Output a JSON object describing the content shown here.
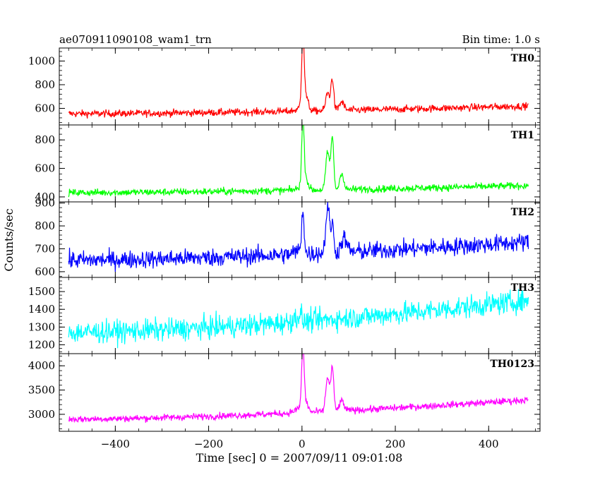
{
  "header": {
    "left_title": "ae070911090108_wam1_trn",
    "right_title": "Bin time: 1.0 s"
  },
  "chart_data": {
    "type": "line",
    "xlabel": "Time [sec] 0 = 2007/09/11 09:01:08",
    "ylabel": "Counts/sec",
    "xlim": [
      -520,
      510
    ],
    "x_range": [
      -500,
      485
    ],
    "x_ticks": [
      -400,
      -200,
      0,
      200,
      400
    ],
    "x_tick_labels": [
      "−400",
      "−200",
      "0",
      "200",
      "400"
    ],
    "grid": false,
    "legend": "none",
    "series": [
      {
        "name": "TH0",
        "color": "#ff0000",
        "ylim": [
          460,
          1110
        ],
        "y_ticks": [
          600,
          800,
          1000
        ],
        "base_start": 555,
        "base_end": 620,
        "noise": 22,
        "peaks": [
          {
            "t": 2,
            "h": 560,
            "w": 2.5
          },
          {
            "t": 6,
            "h": 150,
            "w": 6
          },
          {
            "t": 55,
            "h": 150,
            "w": 4
          },
          {
            "t": 65,
            "h": 270,
            "w": 3
          },
          {
            "t": 85,
            "h": 70,
            "w": 5
          }
        ]
      },
      {
        "name": "TH1",
        "color": "#00ff00",
        "ylim": [
          365,
          905
        ],
        "y_ticks": [
          400,
          600,
          800
        ],
        "base_start": 430,
        "base_end": 480,
        "noise": 18,
        "peaks": [
          {
            "t": 2,
            "h": 430,
            "w": 2.5
          },
          {
            "t": 6,
            "h": 100,
            "w": 6
          },
          {
            "t": 55,
            "h": 260,
            "w": 4
          },
          {
            "t": 65,
            "h": 360,
            "w": 3
          },
          {
            "t": 85,
            "h": 120,
            "w": 4
          }
        ]
      },
      {
        "name": "TH2",
        "color": "#0000ff",
        "ylim": [
          575,
          905
        ],
        "y_ticks": [
          600,
          700,
          800,
          900
        ],
        "base_start": 650,
        "base_end": 730,
        "noise": 28,
        "peaks": [
          {
            "t": 2,
            "h": 200,
            "w": 2.5
          },
          {
            "t": 55,
            "h": 200,
            "w": 4
          },
          {
            "t": 65,
            "h": 120,
            "w": 3
          },
          {
            "t": 90,
            "h": 60,
            "w": 6
          }
        ]
      },
      {
        "name": "TH3",
        "color": "#00ffff",
        "ylim": [
          1150,
          1580
        ],
        "y_ticks": [
          1200,
          1300,
          1400,
          1500
        ],
        "base_start": 1270,
        "base_end": 1450,
        "noise": 45,
        "peaks": []
      },
      {
        "name": "TH0123",
        "color": "#ff00ff",
        "ylim": [
          2650,
          4250
        ],
        "y_ticks": [
          3000,
          3500,
          4000
        ],
        "base_start": 2900,
        "base_end": 3300,
        "noise": 50,
        "peaks": [
          {
            "t": 2,
            "h": 1200,
            "w": 2.5
          },
          {
            "t": 6,
            "h": 250,
            "w": 6
          },
          {
            "t": 55,
            "h": 700,
            "w": 4
          },
          {
            "t": 65,
            "h": 900,
            "w": 3
          },
          {
            "t": 85,
            "h": 200,
            "w": 5
          }
        ]
      }
    ]
  }
}
